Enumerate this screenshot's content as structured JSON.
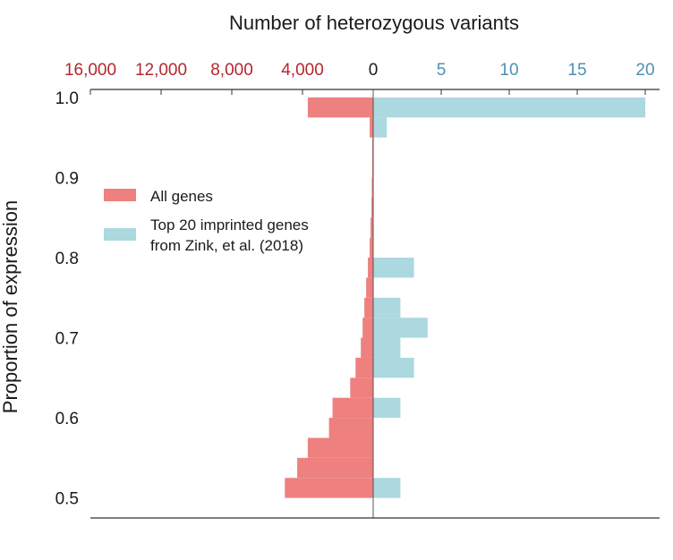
{
  "chart_data": {
    "type": "bar",
    "orientation": "horizontal-diverging",
    "title": "Number of heterozygous variants",
    "ylabel": "Proportion of expression",
    "ylim": [
      0.475,
      1.01
    ],
    "y_ticks": [
      "1.0",
      "0.9",
      "0.8",
      "0.7",
      "0.6",
      "0.5"
    ],
    "x_left_axis": {
      "ticks": [
        "16,000",
        "12,000",
        "8,000",
        "4,000"
      ],
      "max": 16000,
      "color": "#b5262e"
    },
    "x_right_axis": {
      "ticks": [
        "5",
        "10",
        "15",
        "20"
      ],
      "max": 20,
      "color": "#4f8fb3"
    },
    "zero_label": "0",
    "bin_width": 0.025,
    "series": [
      {
        "name": "All genes",
        "color": "#ee8080",
        "side": "left",
        "bins_lower": [
          0.5,
          0.525,
          0.55,
          0.575,
          0.6,
          0.625,
          0.65,
          0.675,
          0.7,
          0.725,
          0.75,
          0.775,
          0.8,
          0.825,
          0.85,
          0.875,
          0.9,
          0.925,
          0.95,
          0.975
        ],
        "values": [
          5000,
          4300,
          3700,
          2500,
          2300,
          1300,
          1000,
          700,
          600,
          500,
          400,
          300,
          200,
          150,
          100,
          80,
          60,
          50,
          200,
          3700
        ]
      },
      {
        "name": "Top 20 imprinted genes from Zink, et al. (2018)",
        "name_lines": [
          "Top 20 imprinted genes",
          "from Zink, et al. (2018)"
        ],
        "color": "#acd8e0",
        "side": "right",
        "bins_lower": [
          0.5,
          0.525,
          0.55,
          0.575,
          0.6,
          0.625,
          0.65,
          0.675,
          0.7,
          0.725,
          0.75,
          0.775,
          0.8,
          0.825,
          0.85,
          0.875,
          0.9,
          0.925,
          0.95,
          0.975
        ],
        "values": [
          2,
          0,
          0,
          0,
          2,
          0,
          3,
          2,
          4,
          2,
          0,
          3,
          0,
          0,
          0,
          0,
          0,
          0,
          1,
          20
        ]
      }
    ],
    "legend": {
      "position": "upper-left"
    }
  }
}
